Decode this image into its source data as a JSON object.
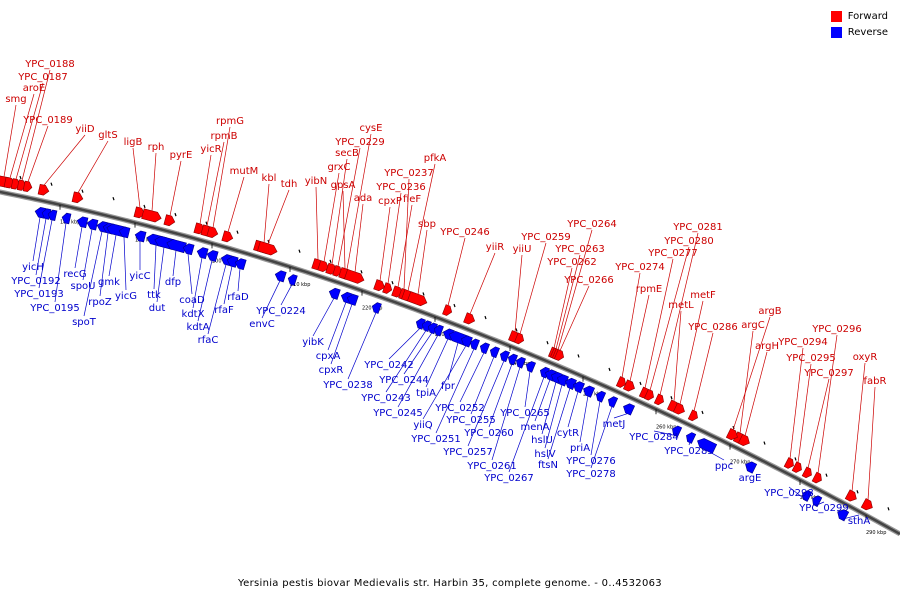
{
  "legend": {
    "forward_label": "Forward",
    "reverse_label": "Reverse",
    "forward_color": "#ff0000",
    "reverse_color": "#0000ff"
  },
  "caption": "Yersinia pestis biovar Medievalis str. Harbin 35, complete genome. - 0..4532063",
  "ticks": [
    "180 kbp",
    "190 kbp",
    "200 kbp",
    "210 kbp",
    "220 kbp",
    "230 kbp",
    "240 kbp",
    "250 kbp",
    "260 kbp",
    "270 kbp",
    "280 kbp",
    "290 kbp"
  ],
  "forward_genes": [
    "smg",
    "aroE",
    "YPC_0187",
    "YPC_0188",
    "YPC_0189",
    "yiiD",
    "gltS",
    "ligB",
    "rph",
    "pyrE",
    "yicR",
    "rpmB",
    "rpmG",
    "mutM",
    "kbl",
    "tdh",
    "yibN",
    "grxC",
    "secB",
    "YPC_0229",
    "cysE",
    "gpsA",
    "ada",
    "cpxP",
    "YPC_0236",
    "fieF",
    "YPC_0237",
    "pfkA",
    "sbp",
    "YPC_0246",
    "yiiR",
    "yiiU",
    "YPC_0259",
    "YPC_0262",
    "YPC_0263",
    "YPC_0264",
    "YPC_0266",
    "YPC_0274",
    "rpmE",
    "YPC_0277",
    "YPC_0280",
    "YPC_0281",
    "metL",
    "metF",
    "YPC_0286",
    "argC",
    "argB",
    "argH",
    "YPC_0294",
    "YPC_0295",
    "YPC_0296",
    "YPC_0297",
    "oxyR",
    "fabR"
  ],
  "reverse_genes": [
    "yicH",
    "YPC_0192",
    "YPC_0193",
    "YPC_0195",
    "recG",
    "spoU",
    "spoT",
    "rpoZ",
    "gmk",
    "yicG",
    "yicC",
    "ttk",
    "dut",
    "dfp",
    "coaD",
    "kdtX",
    "kdtA",
    "rfaC",
    "rfaF",
    "rfaD",
    "envC",
    "YPC_0224",
    "yibK",
    "cpxA",
    "cpxR",
    "YPC_0238",
    "YPC_0242",
    "YPC_0243",
    "YPC_0244",
    "YPC_0245",
    "tpiA",
    "fpr",
    "yiiQ",
    "YPC_0251",
    "YPC_0252",
    "YPC_0255",
    "YPC_0257",
    "YPC_0260",
    "YPC_0261",
    "YPC_0265",
    "YPC_0267",
    "menA",
    "hslU",
    "hslV",
    "ftsN",
    "cytR",
    "priA",
    "YPC_0276",
    "YPC_0278",
    "metJ",
    "YPC_0284",
    "YPC_0285",
    "ppc",
    "argE",
    "YPC_0298",
    "YPC_0299",
    "sthA"
  ]
}
